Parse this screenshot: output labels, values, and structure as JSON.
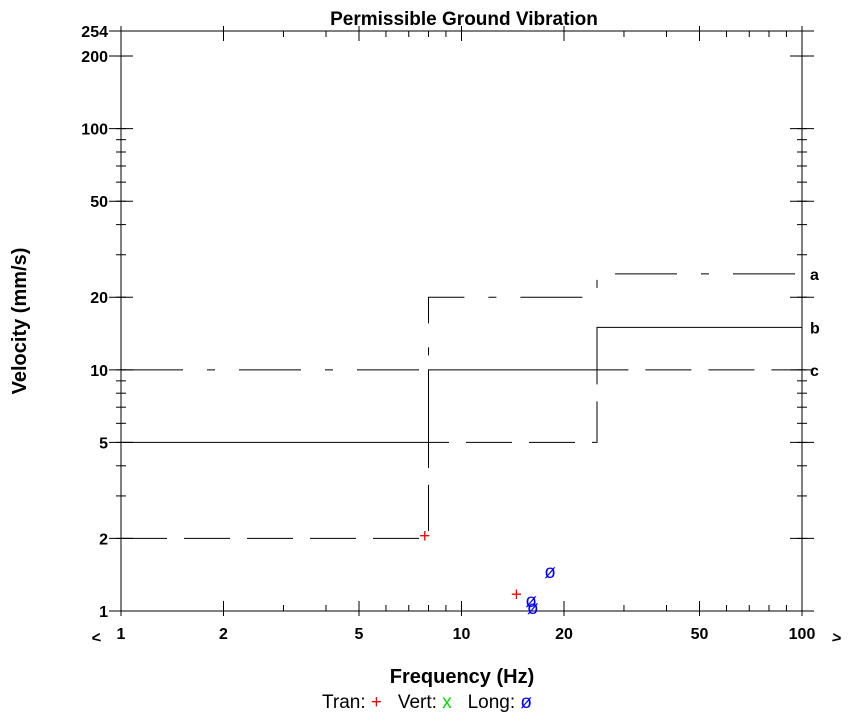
{
  "chart_data": {
    "type": "scatter",
    "title": "Permissible Ground Vibration",
    "xlabel": "Frequency (Hz)",
    "ylabel": "Velocity (mm/s)",
    "x_scale": "log",
    "y_scale": "log",
    "xlim": [
      1,
      100
    ],
    "ylim": [
      1,
      254
    ],
    "x_ticks": [
      "1",
      "2",
      "5",
      "10",
      "20",
      "50",
      "100"
    ],
    "y_ticks": [
      "254",
      "200",
      "100",
      "50",
      "20",
      "10",
      "5",
      "2",
      "1"
    ],
    "x_arrow_left": "<",
    "x_arrow_right": ">",
    "limit_curves": [
      {
        "name": "a",
        "style": "dash-dot",
        "points": [
          [
            1,
            10
          ],
          [
            8,
            10
          ],
          [
            8,
            20
          ],
          [
            25,
            20
          ],
          [
            25,
            25
          ],
          [
            100,
            25
          ]
        ]
      },
      {
        "name": "b",
        "style": "solid",
        "points": [
          [
            1,
            5
          ],
          [
            8,
            5
          ],
          [
            8,
            10
          ],
          [
            25,
            10
          ],
          [
            25,
            15
          ],
          [
            100,
            15
          ]
        ]
      },
      {
        "name": "c",
        "style": "long-dash",
        "points": [
          [
            1,
            2
          ],
          [
            8,
            2
          ],
          [
            8,
            5
          ],
          [
            25,
            5
          ],
          [
            25,
            10
          ],
          [
            100,
            10
          ]
        ]
      }
    ],
    "series": [
      {
        "name": "Tran",
        "marker": "+",
        "color": "#ff0000",
        "points": [
          [
            7.8,
            2.05
          ],
          [
            14.5,
            1.17
          ]
        ]
      },
      {
        "name": "Vert",
        "marker": "x",
        "color": "#00dd00",
        "points": []
      },
      {
        "name": "Long",
        "marker": "ø",
        "color": "#0000ff",
        "points": [
          [
            18.2,
            1.45
          ],
          [
            16.0,
            1.1
          ],
          [
            16.2,
            1.03
          ]
        ]
      }
    ],
    "legend": [
      {
        "label": "Tran:",
        "marker": "+",
        "color": "#ff0000"
      },
      {
        "label": "Vert:",
        "marker": "x",
        "color": "#00dd00"
      },
      {
        "label": "Long:",
        "marker": "ø",
        "color": "#0000ff"
      }
    ]
  }
}
